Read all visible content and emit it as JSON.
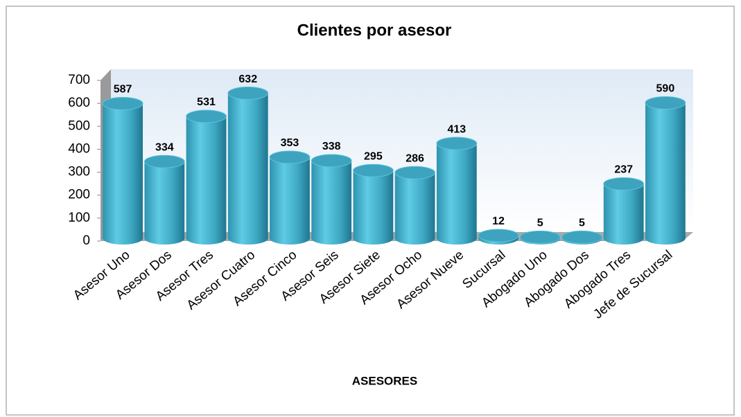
{
  "chart_data": {
    "type": "bar",
    "title": "Clientes  por asesor",
    "x_label": "ASESORES",
    "categories": [
      "Asesor Uno",
      "Asesor Dos",
      "Asesor Tres",
      "Asesor Cuatro",
      "Asesor Cinco",
      "Asesor Seis",
      "Asesor Siete",
      "Asesor Ocho",
      "Asesor Nueve",
      "Sucursal",
      "Abogado Uno",
      "Abogado Dos",
      "Abogado Tres",
      "Jefe de Sucursal"
    ],
    "values": [
      587,
      334,
      531,
      632,
      353,
      338,
      295,
      286,
      413,
      12,
      5,
      5,
      237,
      590
    ],
    "color": "#4bacc6",
    "ylim": [
      0,
      700
    ],
    "yticks": [
      0,
      100,
      200,
      300,
      400,
      500,
      600,
      700
    ],
    "grid": false
  }
}
